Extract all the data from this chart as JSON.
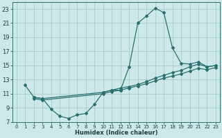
{
  "xlabel": "Humidex (Indice chaleur)",
  "bg_color": "#cce8e8",
  "grid_color": "#aacccc",
  "line_color": "#2a7070",
  "ylim": [
    7,
    24
  ],
  "xlim": [
    -0.5,
    23.5
  ],
  "yticks": [
    7,
    9,
    11,
    13,
    15,
    17,
    19,
    21,
    23
  ],
  "xticks": [
    0,
    1,
    2,
    3,
    4,
    5,
    6,
    7,
    8,
    9,
    10,
    11,
    12,
    13,
    14,
    15,
    16,
    17,
    18,
    19,
    20,
    21,
    22,
    23
  ],
  "line1_x": [
    1,
    2,
    3,
    4,
    5,
    6,
    7,
    8,
    9,
    10,
    11,
    12,
    13,
    14,
    15,
    16,
    17,
    18,
    19,
    20,
    21,
    22,
    23
  ],
  "line1_y": [
    12.2,
    10.5,
    10.3,
    8.8,
    7.8,
    7.5,
    8.0,
    8.2,
    9.5,
    11.2,
    11.5,
    11.5,
    14.8,
    21.0,
    22.0,
    23.1,
    22.5,
    17.5,
    15.3,
    15.2,
    15.5,
    14.8,
    15.0
  ],
  "line2_x": [
    2,
    3,
    10,
    11,
    12,
    13,
    14,
    15,
    16,
    17,
    18,
    19,
    20,
    21,
    22,
    23
  ],
  "line2_y": [
    10.5,
    10.3,
    11.2,
    11.5,
    11.8,
    12.0,
    12.3,
    12.7,
    13.2,
    13.6,
    14.0,
    14.3,
    14.8,
    15.2,
    14.8,
    15.0
  ],
  "line3_x": [
    2,
    3,
    10,
    11,
    12,
    13,
    14,
    15,
    16,
    17,
    18,
    19,
    20,
    21,
    22,
    23
  ],
  "line3_y": [
    10.3,
    10.1,
    11.0,
    11.3,
    11.5,
    11.8,
    12.1,
    12.4,
    12.8,
    13.2,
    13.5,
    13.8,
    14.2,
    14.6,
    14.4,
    14.7
  ]
}
